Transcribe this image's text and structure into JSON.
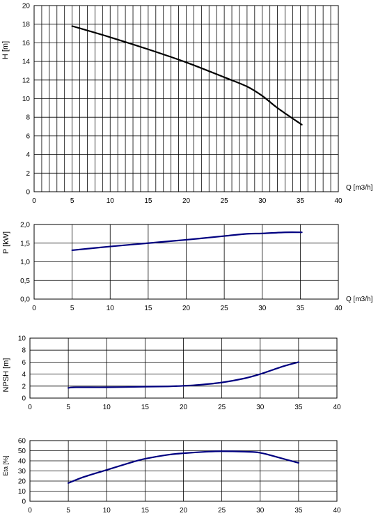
{
  "colors": {
    "h_curve": "#000000",
    "other_curves": "#000080",
    "grid": "#000000",
    "background": "#ffffff"
  },
  "chart_data": [
    {
      "type": "line",
      "xlabel": "Q [m3/h]",
      "ylabel": "H [m]",
      "xlim": [
        0,
        40
      ],
      "ylim": [
        0,
        20
      ],
      "xticks": [
        "0",
        "5",
        "10",
        "15",
        "20",
        "25",
        "30",
        "35",
        "40"
      ],
      "yticks": [
        "0",
        "2",
        "4",
        "6",
        "8",
        "10",
        "12",
        "14",
        "16",
        "18",
        "20"
      ],
      "grid": "vertical every 1, horizontal every 2",
      "series": [
        {
          "x": [
            5,
            10,
            15,
            20,
            25,
            28,
            30,
            32,
            35.2
          ],
          "y": [
            17.8,
            16.6,
            15.3,
            13.9,
            12.3,
            11.3,
            10.3,
            9.0,
            7.2
          ]
        }
      ]
    },
    {
      "type": "line",
      "xlabel": "Q [m3/h]",
      "ylabel": "P [kW]",
      "xlim": [
        0,
        40
      ],
      "ylim": [
        0,
        2
      ],
      "xticks": [
        "0",
        "5",
        "10",
        "15",
        "20",
        "25",
        "30",
        "35",
        "40"
      ],
      "yticks": [
        "0,0",
        "0,5",
        "1,0",
        "1,5",
        "2,0"
      ],
      "grid": "vertical every 5, horizontal every 0.5",
      "series": [
        {
          "x": [
            5,
            10,
            15,
            20,
            25,
            28,
            30,
            33,
            35.2
          ],
          "y": [
            1.31,
            1.41,
            1.5,
            1.59,
            1.69,
            1.75,
            1.76,
            1.79,
            1.79
          ]
        }
      ]
    },
    {
      "type": "line",
      "xlabel": "",
      "ylabel": "NPSH [m]",
      "xlim": [
        0,
        40
      ],
      "ylim": [
        0,
        10
      ],
      "xticks": [
        "0",
        "5",
        "10",
        "15",
        "20",
        "25",
        "30",
        "35",
        "40"
      ],
      "yticks": [
        "0",
        "2",
        "4",
        "6",
        "8",
        "10"
      ],
      "grid": "vertical every 5, horizontal every 2",
      "series": [
        {
          "x": [
            5,
            6,
            10,
            15,
            18,
            20,
            22,
            25,
            28,
            30,
            33,
            35
          ],
          "y": [
            1.7,
            1.8,
            1.8,
            1.9,
            1.95,
            2.05,
            2.2,
            2.6,
            3.3,
            4.0,
            5.3,
            6.0
          ]
        }
      ]
    },
    {
      "type": "line",
      "xlabel": "",
      "ylabel": "Eta [%]",
      "xlim": [
        0,
        40
      ],
      "ylim": [
        0,
        60
      ],
      "xticks": [
        "0",
        "5",
        "10",
        "15",
        "20",
        "25",
        "30",
        "35",
        "40"
      ],
      "yticks": [
        "0",
        "10",
        "20",
        "30",
        "40",
        "50",
        "60"
      ],
      "grid": "vertical every 5, horizontal every 10",
      "series": [
        {
          "x": [
            5,
            7,
            10,
            13,
            15,
            18,
            20,
            23,
            25,
            28,
            30,
            33,
            35
          ],
          "y": [
            18,
            24,
            31,
            38,
            42,
            46,
            47.5,
            49,
            49.5,
            49,
            48,
            42,
            38
          ]
        }
      ]
    }
  ]
}
